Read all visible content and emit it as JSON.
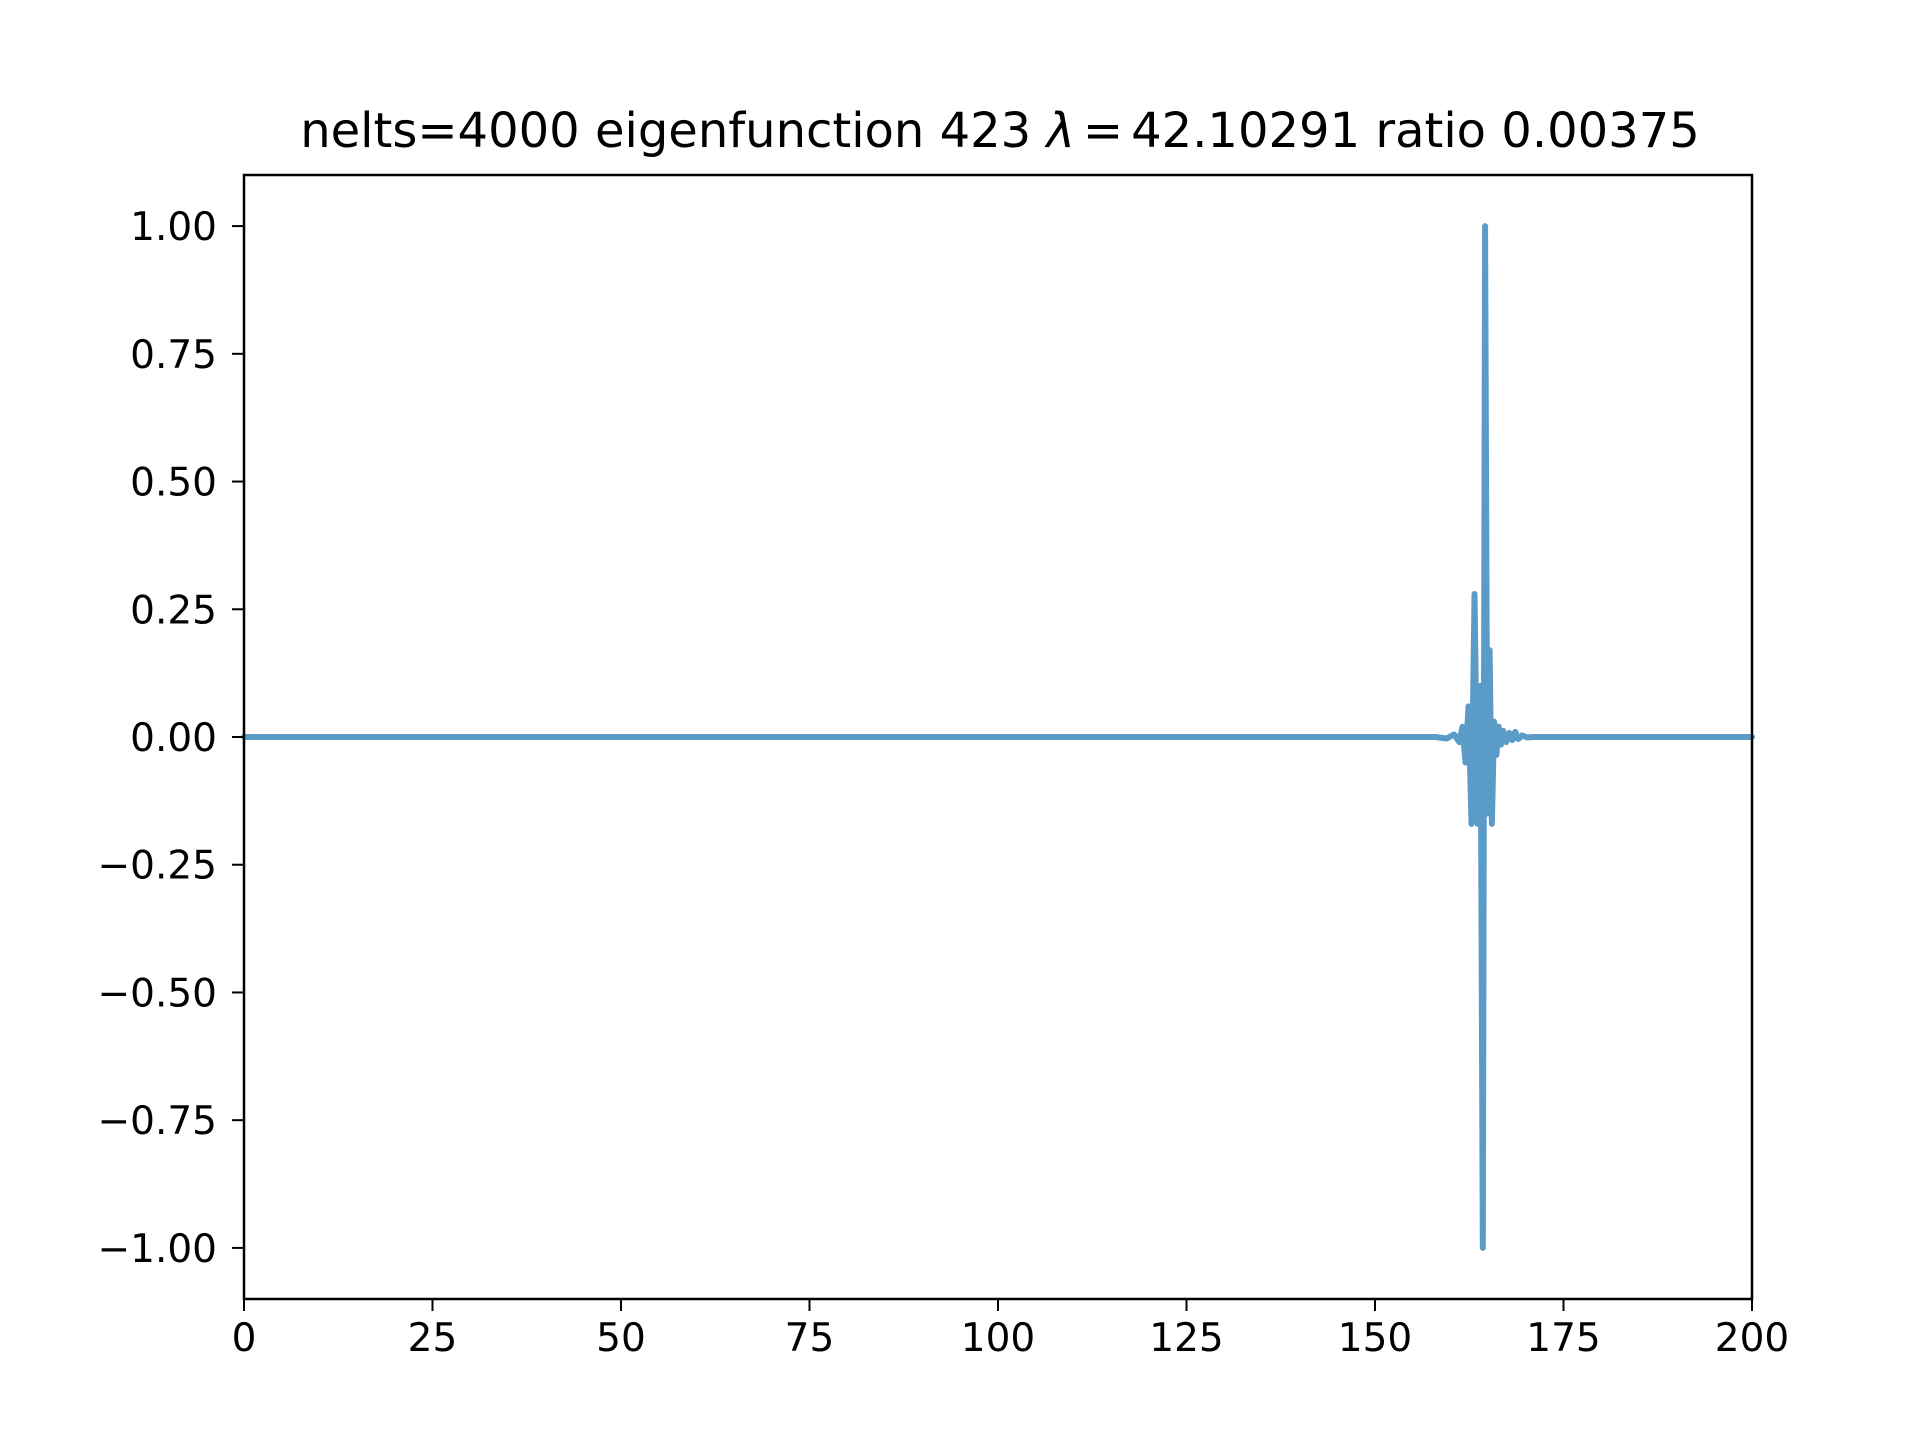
{
  "chart_data": {
    "type": "line",
    "title_parts": {
      "prefix": "nelts=4000  eigenfunction 423  ",
      "lambda_symbol": "λ",
      "equals": "=",
      "suffix": "42.10291 ratio 0.00375"
    },
    "xlabel": "",
    "ylabel": "",
    "xlim": [
      0,
      200
    ],
    "ylim": [
      -1.1,
      1.1
    ],
    "xticks": [
      0,
      25,
      50,
      75,
      100,
      125,
      150,
      175,
      200
    ],
    "xtick_labels": [
      "0",
      "25",
      "50",
      "75",
      "100",
      "125",
      "150",
      "175",
      "200"
    ],
    "yticks": [
      1.0,
      0.75,
      0.5,
      0.25,
      0.0,
      -0.25,
      -0.5,
      -0.75,
      -1.0
    ],
    "ytick_labels": [
      "1.00",
      "0.75",
      "0.50",
      "0.25",
      "0.00",
      "−0.25",
      "−0.50",
      "−0.75",
      "−1.00"
    ],
    "grid": false,
    "series": [
      {
        "color": "#5b9bc8",
        "x": [
          0,
          158,
          159.5,
          160.5,
          161.2,
          161.6,
          162.0,
          162.4,
          162.8,
          163.2,
          163.6,
          164.0,
          164.3,
          164.6,
          164.9,
          165.2,
          165.5,
          165.8,
          166.1,
          166.4,
          166.7,
          167.0,
          167.4,
          167.8,
          168.2,
          168.6,
          169.0,
          169.5,
          170.2,
          171,
          200
        ],
        "y": [
          0.0,
          0.0,
          -0.003,
          0.005,
          -0.01,
          0.02,
          -0.05,
          0.06,
          -0.17,
          0.28,
          -0.17,
          0.1,
          -1.0,
          1.0,
          -0.15,
          0.17,
          -0.17,
          0.03,
          -0.035,
          0.02,
          -0.015,
          0.012,
          -0.01,
          0.008,
          -0.006,
          0.01,
          -0.004,
          0.003,
          -0.001,
          0.0,
          0.0
        ]
      }
    ]
  }
}
